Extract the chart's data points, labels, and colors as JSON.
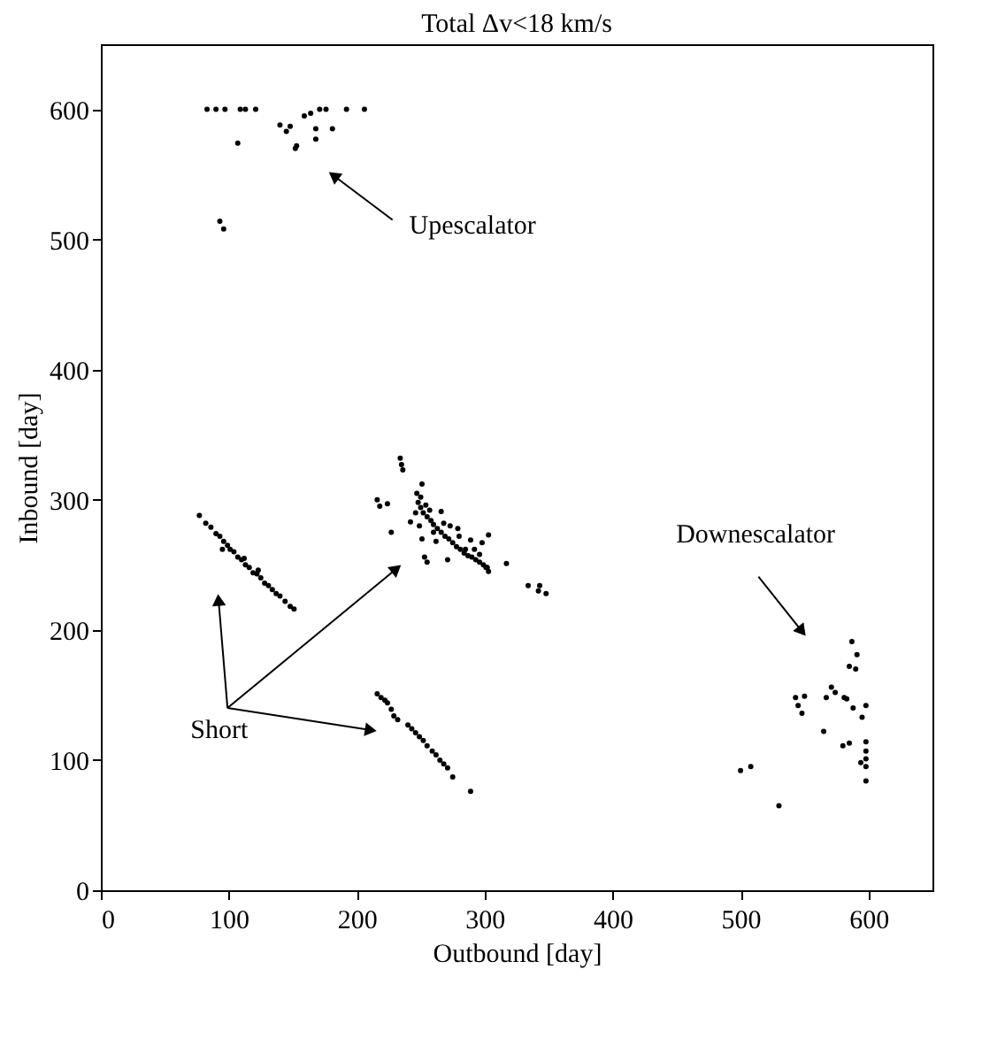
{
  "chart_data": {
    "type": "scatter",
    "title": "Total Δv<18 km/s",
    "xlabel": "Outbound [day]",
    "ylabel": "Inbound [day]",
    "xlim": [
      0,
      650
    ],
    "ylim": [
      0,
      650
    ],
    "xticks": [
      0,
      100,
      200,
      300,
      400,
      500,
      600
    ],
    "yticks": [
      0,
      100,
      200,
      300,
      400,
      500,
      600
    ],
    "grid": false,
    "marker": "circle",
    "series": [
      {
        "color": "#000000",
        "x": [
          83,
          90,
          97,
          109,
          113,
          121,
          171,
          176,
          192,
          206,
          140,
          145,
          148,
          107,
          153,
          152,
          159,
          164,
          168,
          168,
          181,
          93,
          96,
          77,
          82,
          86,
          90,
          93,
          96,
          99,
          101,
          104,
          107,
          110,
          113,
          116,
          119,
          122,
          125,
          128,
          131,
          134,
          137,
          140,
          144,
          148,
          151,
          95,
          112,
          123,
          234,
          235,
          236,
          216,
          218,
          224,
          227,
          251,
          247,
          266,
          242,
          253,
          255,
          273,
          279,
          289,
          298,
          303,
          317,
          271,
          301,
          334,
          343,
          342,
          348,
          248,
          250,
          252,
          255,
          258,
          260,
          263,
          266,
          269,
          272,
          275,
          278,
          281,
          284,
          287,
          290,
          293,
          296,
          299,
          302,
          303,
          250,
          254,
          257,
          246,
          249,
          251,
          260,
          262,
          268,
          280,
          285,
          292,
          296,
          216,
          219,
          222,
          224,
          227,
          229,
          232,
          240,
          243,
          246,
          249,
          252,
          255,
          259,
          262,
          265,
          268,
          271,
          275,
          289,
          587,
          591,
          585,
          590,
          571,
          567,
          574,
          581,
          583,
          543,
          550,
          545,
          548,
          588,
          598,
          595,
          565,
          580,
          585,
          598,
          598,
          598,
          598,
          598,
          594,
          530,
          500,
          508
        ],
        "values": [
          600,
          600,
          600,
          600,
          600,
          600,
          600,
          600,
          600,
          600,
          588,
          583,
          587,
          574,
          572,
          570,
          595,
          597,
          585,
          577,
          585,
          514,
          508,
          288,
          282,
          279,
          274,
          272,
          268,
          265,
          262,
          260,
          256,
          254,
          250,
          248,
          244,
          243,
          240,
          236,
          234,
          231,
          228,
          226,
          222,
          218,
          216,
          262,
          255,
          246,
          332,
          327,
          323,
          300,
          295,
          297,
          275,
          312,
          305,
          291,
          283,
          256,
          252,
          280,
          278,
          269,
          267,
          273,
          251,
          254,
          248,
          234,
          234,
          230,
          228,
          298,
          294,
          290,
          287,
          284,
          281,
          278,
          275,
          272,
          270,
          267,
          264,
          262,
          259,
          257,
          256,
          254,
          252,
          250,
          248,
          245,
          302,
          296,
          292,
          290,
          280,
          270,
          275,
          268,
          282,
          272,
          262,
          262,
          258,
          151,
          148,
          146,
          144,
          139,
          134,
          131,
          127,
          124,
          121,
          118,
          115,
          111,
          107,
          104,
          100,
          97,
          94,
          87,
          76,
          191,
          181,
          172,
          170,
          156,
          148,
          152,
          148,
          147,
          148,
          149,
          142,
          136,
          140,
          142,
          133,
          122,
          111,
          113,
          114,
          107,
          101,
          95,
          84,
          98,
          65,
          92,
          95
        ]
      }
    ],
    "annotations": [
      "Upescalator",
      "Short",
      "Downescalator"
    ]
  }
}
